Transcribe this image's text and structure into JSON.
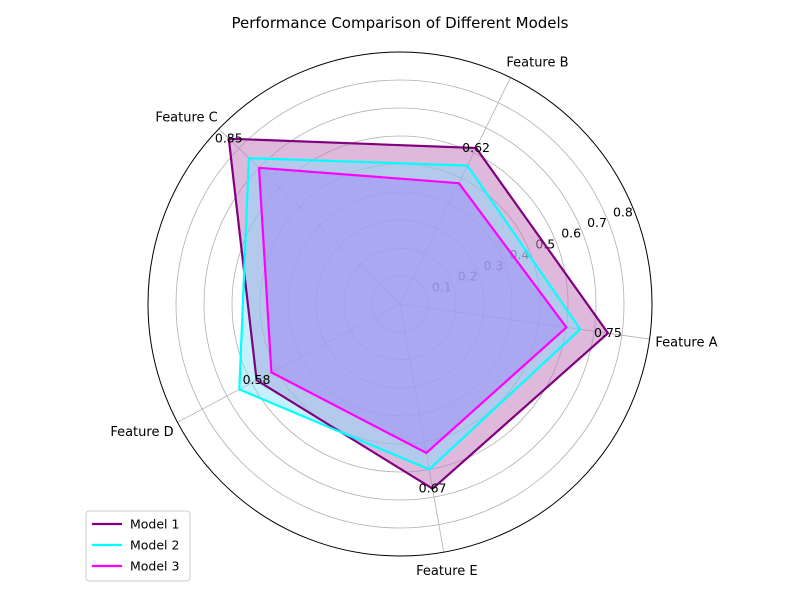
{
  "chart_data": {
    "type": "radar",
    "title": "Performance Comparison of Different Models",
    "categories": [
      "Feature A",
      "Feature B",
      "Feature C",
      "Feature D",
      "Feature E"
    ],
    "rlim": [
      0,
      0.9
    ],
    "rticks": [
      0.1,
      0.2,
      0.3,
      0.4,
      0.5,
      0.6,
      0.7,
      0.8
    ],
    "rtick_labels": [
      "0.1",
      "0.2",
      "0.3",
      "0.4",
      "0.5",
      "0.6",
      "0.7",
      "0.8"
    ],
    "grid": true,
    "legend_position": "lower-left",
    "series": [
      {
        "name": "Model 1",
        "values": [
          0.75,
          0.62,
          0.85,
          0.58,
          0.67
        ],
        "color": "#800080",
        "fill": "#c57fc0",
        "fill_opacity": 0.55
      },
      {
        "name": "Model 2",
        "values": [
          0.65,
          0.55,
          0.75,
          0.65,
          0.6
        ],
        "color": "#00ffff",
        "fill": "#7fe0ff",
        "fill_opacity": 0.45
      },
      {
        "name": "Model 3",
        "values": [
          0.6,
          0.48,
          0.7,
          0.52,
          0.54
        ],
        "color": "#ff00ff",
        "fill": "#a38cf6",
        "fill_opacity": 0.55
      }
    ],
    "data_labels": [
      {
        "category": "Feature A",
        "text": "0.75"
      },
      {
        "category": "Feature B",
        "text": "0.62"
      },
      {
        "category": "Feature C",
        "text": "0.85"
      },
      {
        "category": "Feature D",
        "text": "0.58"
      },
      {
        "category": "Feature E",
        "text": "0.67"
      }
    ]
  }
}
